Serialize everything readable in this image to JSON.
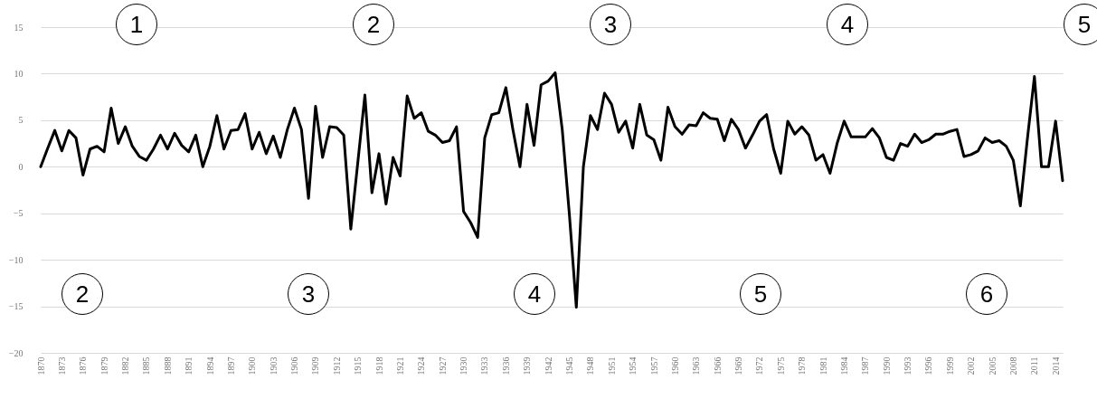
{
  "chart_data": {
    "type": "line",
    "x": [
      1870,
      1871,
      1872,
      1873,
      1874,
      1875,
      1876,
      1877,
      1878,
      1879,
      1880,
      1881,
      1882,
      1883,
      1884,
      1885,
      1886,
      1887,
      1888,
      1889,
      1890,
      1891,
      1892,
      1893,
      1894,
      1895,
      1896,
      1897,
      1898,
      1899,
      1900,
      1901,
      1902,
      1903,
      1904,
      1905,
      1906,
      1907,
      1908,
      1909,
      1910,
      1911,
      1912,
      1913,
      1914,
      1915,
      1916,
      1917,
      1918,
      1919,
      1920,
      1921,
      1922,
      1923,
      1924,
      1925,
      1926,
      1927,
      1928,
      1929,
      1930,
      1931,
      1932,
      1933,
      1934,
      1935,
      1936,
      1937,
      1938,
      1939,
      1940,
      1941,
      1942,
      1943,
      1944,
      1945,
      1946,
      1947,
      1948,
      1949,
      1950,
      1951,
      1952,
      1953,
      1954,
      1955,
      1956,
      1957,
      1958,
      1959,
      1960,
      1961,
      1962,
      1963,
      1964,
      1965,
      1966,
      1967,
      1968,
      1969,
      1970,
      1971,
      1972,
      1973,
      1974,
      1975,
      1976,
      1977,
      1978,
      1979,
      1980,
      1981,
      1982,
      1983,
      1984,
      1985,
      1986,
      1987,
      1988,
      1989,
      1990,
      1991,
      1992,
      1993,
      1994,
      1995,
      1996,
      1997,
      1998,
      1999,
      2000,
      2001,
      2002,
      2003,
      2004,
      2005,
      2006,
      2007,
      2008,
      2009,
      2010,
      2011,
      2012,
      2013,
      2014,
      2015
    ],
    "series": [
      {
        "color": "#000000",
        "values": [
          0,
          2.0,
          3.9,
          1.7,
          3.9,
          3.1,
          -0.9,
          1.9,
          2.2,
          1.6,
          6.3,
          2.5,
          4.3,
          2.2,
          1.1,
          0.7,
          1.9,
          3.4,
          1.9,
          3.6,
          2.3,
          1.6,
          3.4,
          0,
          2.2,
          5.5,
          1.9,
          3.9,
          4.0,
          5.7,
          1.9,
          3.7,
          1.4,
          3.3,
          1.0,
          4.0,
          6.3,
          4.0,
          -3.4,
          6.5,
          1.0,
          4.3,
          4.2,
          3.4,
          -6.7,
          0.5,
          7.7,
          -2.8,
          1.4,
          -4.0,
          1.0,
          -1.0,
          7.6,
          5.2,
          5.8,
          3.8,
          3.4,
          2.6,
          2.8,
          4.3,
          -4.8,
          -6.0,
          -7.6,
          3.1,
          5.6,
          5.8,
          8.5,
          4.0,
          0,
          6.7,
          2.3,
          8.8,
          9.2,
          10.1,
          4.0,
          -5.0,
          -15.1,
          0,
          5.5,
          4.0,
          7.9,
          6.7,
          3.7,
          4.9,
          2.0,
          6.7,
          3.4,
          2.9,
          0.7,
          6.4,
          4.3,
          3.5,
          4.5,
          4.4,
          5.8,
          5.2,
          5.1,
          2.8,
          5.1,
          4.0,
          2.0,
          3.4,
          4.9,
          5.6,
          1.9,
          -0.7,
          4.9,
          3.5,
          4.3,
          3.4,
          0.7,
          1.3,
          -0.7,
          2.5,
          4.9,
          3.2,
          3.2,
          3.2,
          4.1,
          3.1,
          1.0,
          0.7,
          2.5,
          2.2,
          3.5,
          2.6,
          2.9,
          3.5,
          3.5,
          3.8,
          4.0,
          1.1,
          1.3,
          1.7,
          3.1,
          2.6,
          2.8,
          2.2,
          0.7,
          -4.2,
          3.0,
          9.7,
          0,
          0,
          4.9,
          -1.5
        ]
      }
    ],
    "xlim": [
      1870,
      2015
    ],
    "xticks": [
      1870,
      1873,
      1876,
      1879,
      1882,
      1885,
      1888,
      1891,
      1894,
      1897,
      1900,
      1903,
      1906,
      1909,
      1912,
      1915,
      1918,
      1921,
      1924,
      1927,
      1930,
      1933,
      1936,
      1939,
      1942,
      1945,
      1948,
      1951,
      1954,
      1957,
      1960,
      1963,
      1966,
      1969,
      1972,
      1975,
      1978,
      1981,
      1984,
      1987,
      1990,
      1993,
      1996,
      1999,
      2002,
      2005,
      2008,
      2011,
      2014
    ],
    "ylim": [
      -20,
      15
    ],
    "yticks": [
      -20,
      -15,
      -10,
      -5,
      0,
      5,
      10,
      15
    ],
    "grid": "y",
    "line_style": "solid",
    "marker": "none",
    "annotations": [
      "1",
      "2",
      "3",
      "4",
      "5",
      "2",
      "3",
      "4",
      "5",
      "6"
    ]
  }
}
